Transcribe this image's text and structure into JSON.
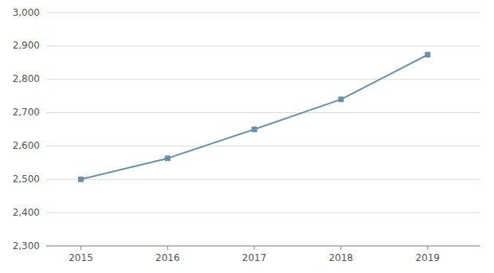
{
  "chart_data": {
    "type": "line",
    "x": [
      2015,
      2016,
      2017,
      2018,
      2019
    ],
    "values": [
      2500,
      2563,
      2650,
      2740,
      2874
    ],
    "color": "#6e8fa8",
    "marker": "square",
    "xlim": [
      2014.6,
      2019.6
    ],
    "ylim": [
      2300,
      3000
    ],
    "xticks": [
      2015,
      2016,
      2017,
      2018,
      2019
    ],
    "yticks": [
      {
        "value": 2300,
        "label": "2,300"
      },
      {
        "value": 2400,
        "label": "2,400"
      },
      {
        "value": 2500,
        "label": "2,500"
      },
      {
        "value": 2600,
        "label": "2,600"
      },
      {
        "value": 2700,
        "label": "2,700"
      },
      {
        "value": 2800,
        "label": "2,800"
      },
      {
        "value": 2900,
        "label": "2,900"
      },
      {
        "value": 3000,
        "label": "3,000"
      }
    ],
    "grid": true
  }
}
